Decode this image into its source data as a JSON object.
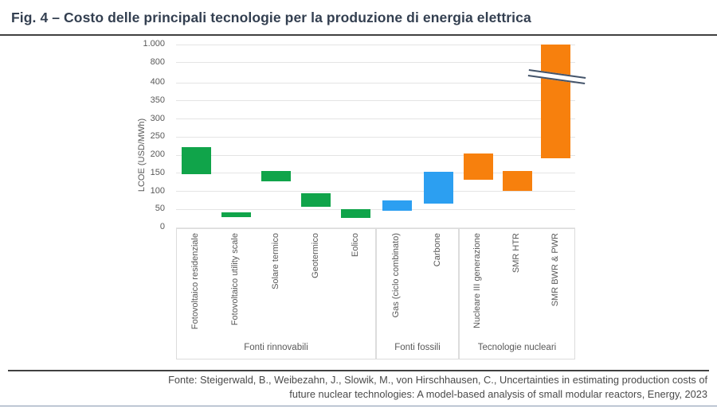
{
  "header": {
    "title": "Fig. 4 – Costo delle principali tecnologie per la produzione di energia elettrica"
  },
  "footer": {
    "lines": [
      "Fonte: Steigerwald, B., Weibezahn, J., Slowik, M., von Hirschhausen, C., Uncertainties in estimating production costs of",
      "future nuclear technologies: A model-based analysis of small modular reactors, Energy, 2023"
    ]
  },
  "chart_data": {
    "type": "bar",
    "subtype": "floating-range-columns",
    "title": "Costo delle principali tecnologie per la produzione di energia elettrica",
    "xlabel": "",
    "ylabel": "LCOE (USD/MWh)",
    "unit": "USD/MWh",
    "grid": true,
    "axis_break": {
      "between": [
        400,
        800
      ],
      "note": "compressed scale above 400"
    },
    "y_axis": {
      "ticks": [
        {
          "label": "0",
          "value": 0
        },
        {
          "label": "50",
          "value": 50
        },
        {
          "label": "100",
          "value": 100
        },
        {
          "label": "150",
          "value": 150
        },
        {
          "label": "200",
          "value": 200
        },
        {
          "label": "250",
          "value": 250
        },
        {
          "label": "300",
          "value": 300
        },
        {
          "label": "350",
          "value": 350
        },
        {
          "label": "400",
          "value": 400
        },
        {
          "label": "800",
          "value": 800
        },
        {
          "label": "1.000",
          "value": 1000
        }
      ],
      "ylim": [
        0,
        1000
      ]
    },
    "colors": {
      "renewables": "#10A44A",
      "fossil": "#2C9FF1",
      "nuclear": "#F7800D"
    },
    "groups": [
      {
        "label": "Fonti rinnovabili",
        "color_key": "renewables",
        "bars": [
          {
            "label": "Fotovoltaico residenziale",
            "low": 147,
            "high": 221
          },
          {
            "label": "Fotovoltaico utility scale",
            "low": 28,
            "high": 41
          },
          {
            "label": "Solare termico",
            "low": 126,
            "high": 156
          },
          {
            "label": "Geotermico",
            "low": 56,
            "high": 93
          },
          {
            "label": "Eolico",
            "low": 26,
            "high": 50
          }
        ]
      },
      {
        "label": "Fonti fossili",
        "color_key": "fossil",
        "bars": [
          {
            "label": "Gas (ciclo combinato)",
            "low": 45,
            "high": 74
          },
          {
            "label": "Carbone",
            "low": 65,
            "high": 152
          }
        ]
      },
      {
        "label": "Tecnologie nucleari",
        "color_key": "nuclear",
        "bars": [
          {
            "label": "Nucleare III generazione",
            "low": 131,
            "high": 204
          },
          {
            "label": "SMR HTR",
            "low": 100,
            "high": 155
          },
          {
            "label": "SMR BWR & PWR",
            "low": 190,
            "high": 1000
          }
        ]
      }
    ]
  }
}
